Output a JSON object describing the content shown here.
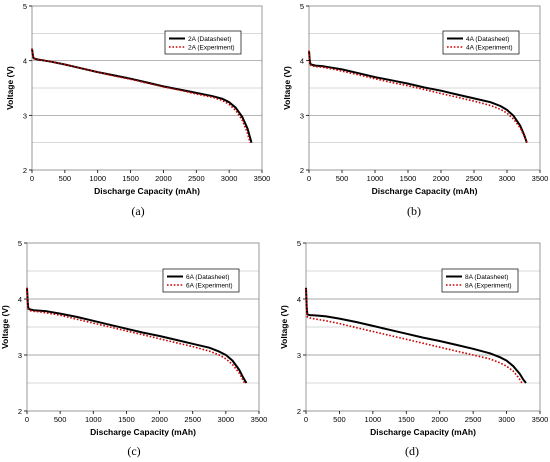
{
  "chart_data": [
    {
      "type": "line",
      "panel_label": "(a)",
      "xlabel": "Discharge Capacity (mAh)",
      "ylabel": "Voltage (V)",
      "xlim": [
        0,
        3500
      ],
      "ylim": [
        2,
        5
      ],
      "x_ticks": [
        "0",
        "500",
        "1000",
        "1500",
        "2000",
        "2500",
        "3000",
        "3500"
      ],
      "y_ticks": [
        "2",
        "3",
        "4",
        "5"
      ],
      "grid": "horizontal",
      "legend_position": "top-right",
      "series": [
        {
          "name": "2A (Datasheet)",
          "color": "#000000",
          "style": "solid",
          "x": [
            0,
            10,
            20,
            30,
            60,
            100,
            200,
            300,
            500,
            750,
            1000,
            1250,
            1500,
            1750,
            2000,
            2250,
            2500,
            2750,
            2900,
            3000,
            3100,
            3200,
            3280,
            3340
          ],
          "y": [
            4.22,
            4.12,
            4.06,
            4.04,
            4.03,
            4.02,
            4.0,
            3.98,
            3.93,
            3.86,
            3.79,
            3.73,
            3.67,
            3.6,
            3.53,
            3.47,
            3.41,
            3.35,
            3.3,
            3.24,
            3.14,
            2.97,
            2.76,
            2.5
          ]
        },
        {
          "name": "2A (Experiment)",
          "color": "#cc0000",
          "style": "dotted",
          "x": [
            0,
            10,
            20,
            30,
            60,
            100,
            200,
            300,
            500,
            750,
            1000,
            1250,
            1500,
            1750,
            2000,
            2250,
            2500,
            2750,
            2900,
            3000,
            3100,
            3200,
            3270,
            3320
          ],
          "y": [
            4.22,
            4.12,
            4.06,
            4.04,
            4.03,
            4.02,
            4.0,
            3.98,
            3.93,
            3.86,
            3.79,
            3.72,
            3.66,
            3.59,
            3.52,
            3.46,
            3.39,
            3.33,
            3.27,
            3.2,
            3.09,
            2.91,
            2.7,
            2.5
          ]
        }
      ]
    },
    {
      "type": "line",
      "panel_label": "(b)",
      "xlabel": "Discharge Capacity (mAh)",
      "ylabel": "Voltage (V)",
      "xlim": [
        0,
        3500
      ],
      "ylim": [
        2,
        5
      ],
      "x_ticks": [
        "0",
        "500",
        "1000",
        "1500",
        "2000",
        "2500",
        "3000",
        "3500"
      ],
      "y_ticks": [
        "2",
        "3",
        "4",
        "5"
      ],
      "grid": "horizontal",
      "legend_position": "top-right",
      "series": [
        {
          "name": "4A (Datasheet)",
          "color": "#000000",
          "style": "solid",
          "x": [
            0,
            10,
            20,
            30,
            60,
            100,
            200,
            300,
            500,
            750,
            1000,
            1250,
            1500,
            1750,
            2000,
            2250,
            2500,
            2750,
            2900,
            3000,
            3100,
            3200,
            3260,
            3300
          ],
          "y": [
            4.18,
            4.02,
            3.95,
            3.93,
            3.92,
            3.91,
            3.9,
            3.88,
            3.84,
            3.77,
            3.7,
            3.64,
            3.58,
            3.51,
            3.45,
            3.38,
            3.31,
            3.24,
            3.17,
            3.1,
            2.99,
            2.81,
            2.64,
            2.5
          ]
        },
        {
          "name": "4A (Experiment)",
          "color": "#cc0000",
          "style": "dotted",
          "x": [
            0,
            10,
            20,
            30,
            60,
            100,
            200,
            300,
            500,
            750,
            1000,
            1250,
            1500,
            1750,
            2000,
            2250,
            2500,
            2750,
            2900,
            3000,
            3100,
            3200,
            3260,
            3300
          ],
          "y": [
            4.18,
            4.0,
            3.93,
            3.91,
            3.9,
            3.89,
            3.88,
            3.86,
            3.81,
            3.74,
            3.67,
            3.6,
            3.54,
            3.47,
            3.4,
            3.33,
            3.26,
            3.18,
            3.11,
            3.04,
            2.93,
            2.77,
            2.62,
            2.5
          ]
        }
      ]
    },
    {
      "type": "line",
      "panel_label": "(c)",
      "xlabel": "Discharge Capacity (mAh)",
      "ylabel": "Voltage (V)",
      "xlim": [
        0,
        3500
      ],
      "ylim": [
        2,
        5
      ],
      "x_ticks": [
        "0",
        "500",
        "1000",
        "1500",
        "2000",
        "2500",
        "3000",
        "3500"
      ],
      "y_ticks": [
        "2",
        "3",
        "4",
        "5"
      ],
      "grid": "horizontal",
      "legend_position": "top-right",
      "series": [
        {
          "name": "6A (Datasheet)",
          "color": "#000000",
          "style": "solid",
          "x": [
            0,
            10,
            20,
            30,
            60,
            100,
            200,
            300,
            500,
            750,
            1000,
            1250,
            1500,
            1750,
            2000,
            2250,
            2500,
            2750,
            2900,
            3000,
            3100,
            3200,
            3260,
            3310
          ],
          "y": [
            4.2,
            3.95,
            3.84,
            3.82,
            3.81,
            3.8,
            3.79,
            3.78,
            3.74,
            3.68,
            3.61,
            3.54,
            3.47,
            3.4,
            3.34,
            3.27,
            3.2,
            3.13,
            3.06,
            3.0,
            2.9,
            2.74,
            2.6,
            2.5
          ]
        },
        {
          "name": "6A (Experiment)",
          "color": "#cc0000",
          "style": "dotted",
          "x": [
            0,
            10,
            20,
            30,
            60,
            100,
            200,
            300,
            500,
            750,
            1000,
            1250,
            1500,
            1750,
            2000,
            2250,
            2500,
            2750,
            2900,
            3000,
            3100,
            3200,
            3250,
            3290
          ],
          "y": [
            4.2,
            3.92,
            3.82,
            3.8,
            3.79,
            3.78,
            3.77,
            3.75,
            3.71,
            3.64,
            3.57,
            3.5,
            3.43,
            3.36,
            3.29,
            3.22,
            3.15,
            3.07,
            3.0,
            2.93,
            2.83,
            2.68,
            2.57,
            2.48
          ]
        }
      ]
    },
    {
      "type": "line",
      "panel_label": "(d)",
      "xlabel": "Discharge Capacity (mAh)",
      "ylabel": "Voltage (V)",
      "xlim": [
        0,
        3500
      ],
      "ylim": [
        2,
        5
      ],
      "x_ticks": [
        "0",
        "500",
        "1000",
        "1500",
        "2000",
        "2500",
        "3000",
        "3500"
      ],
      "y_ticks": [
        "2",
        "3",
        "4",
        "5"
      ],
      "grid": "horizontal",
      "legend_position": "top-right",
      "series": [
        {
          "name": "8A (Datasheet)",
          "color": "#000000",
          "style": "solid",
          "x": [
            0,
            10,
            20,
            30,
            60,
            100,
            200,
            300,
            500,
            750,
            1000,
            1250,
            1500,
            1750,
            2000,
            2250,
            2500,
            2750,
            2900,
            3000,
            3100,
            3200,
            3250,
            3290
          ],
          "y": [
            4.2,
            3.85,
            3.73,
            3.72,
            3.71,
            3.71,
            3.7,
            3.69,
            3.65,
            3.59,
            3.52,
            3.45,
            3.38,
            3.31,
            3.25,
            3.18,
            3.11,
            3.03,
            2.96,
            2.9,
            2.8,
            2.66,
            2.56,
            2.5
          ]
        },
        {
          "name": "8A (Experiment)",
          "color": "#cc0000",
          "style": "dotted",
          "x": [
            0,
            10,
            20,
            30,
            60,
            100,
            200,
            300,
            500,
            750,
            1000,
            1250,
            1500,
            1750,
            2000,
            2250,
            2500,
            2750,
            2900,
            3000,
            3100,
            3150,
            3200,
            3240
          ],
          "y": [
            4.18,
            3.8,
            3.68,
            3.67,
            3.66,
            3.65,
            3.63,
            3.61,
            3.56,
            3.49,
            3.42,
            3.35,
            3.28,
            3.21,
            3.14,
            3.07,
            3.0,
            2.93,
            2.86,
            2.8,
            2.71,
            2.64,
            2.56,
            2.48
          ]
        }
      ]
    }
  ]
}
